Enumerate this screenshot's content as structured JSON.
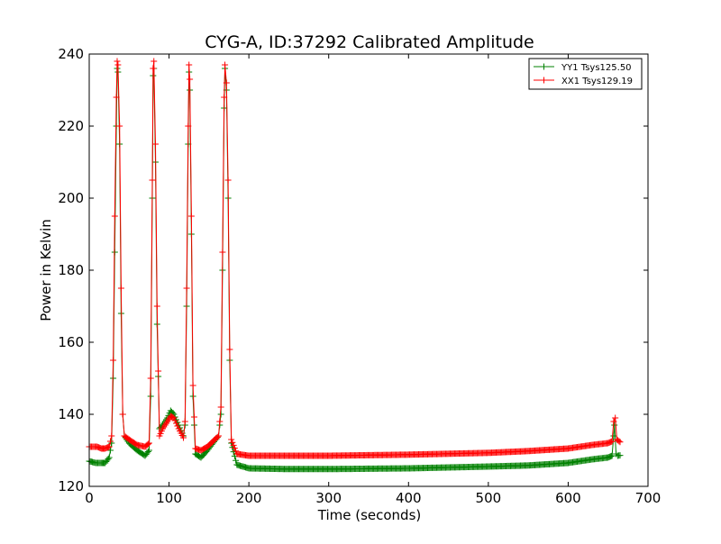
{
  "chart_data": {
    "type": "line",
    "title": "CYG-A, ID:37292 Calibrated Amplitude",
    "xlabel": "Time (seconds)",
    "ylabel": "Power in Kelvin",
    "xlim": [
      0,
      700
    ],
    "ylim": [
      120,
      240
    ],
    "xticks": [
      0,
      100,
      200,
      300,
      400,
      500,
      600,
      700
    ],
    "yticks": [
      120,
      140,
      160,
      180,
      200,
      220,
      240
    ],
    "grid": false,
    "legend_position": "top-right",
    "marker": "plus",
    "series": [
      {
        "name": "YY1 Tsys125.50",
        "color": "#008000",
        "points": [
          [
            0,
            127
          ],
          [
            8,
            126.5
          ],
          [
            15,
            126.5
          ],
          [
            20,
            126.5
          ],
          [
            25,
            128
          ],
          [
            28,
            132
          ],
          [
            30,
            150
          ],
          [
            32,
            185
          ],
          [
            34,
            220
          ],
          [
            35,
            236
          ],
          [
            36,
            235
          ],
          [
            38,
            215
          ],
          [
            40,
            168
          ],
          [
            42,
            140
          ],
          [
            44,
            134
          ],
          [
            50,
            132
          ],
          [
            60,
            130
          ],
          [
            70,
            128.5
          ],
          [
            75,
            130
          ],
          [
            77,
            145
          ],
          [
            79,
            200
          ],
          [
            80,
            234
          ],
          [
            81,
            236
          ],
          [
            83,
            210
          ],
          [
            85,
            165
          ],
          [
            88,
            136
          ],
          [
            92,
            137
          ],
          [
            98,
            139
          ],
          [
            102,
            141
          ],
          [
            106,
            140
          ],
          [
            112,
            137
          ],
          [
            118,
            134
          ],
          [
            120,
            137
          ],
          [
            122,
            170
          ],
          [
            124,
            215
          ],
          [
            125,
            235
          ],
          [
            126,
            230
          ],
          [
            128,
            190
          ],
          [
            130,
            145
          ],
          [
            133,
            129
          ],
          [
            140,
            128
          ],
          [
            148,
            130
          ],
          [
            155,
            132
          ],
          [
            162,
            134
          ],
          [
            165,
            140
          ],
          [
            167,
            180
          ],
          [
            169,
            225
          ],
          [
            170,
            236
          ],
          [
            172,
            230
          ],
          [
            174,
            200
          ],
          [
            176,
            155
          ],
          [
            178,
            132
          ],
          [
            185,
            126
          ],
          [
            200,
            125
          ],
          [
            250,
            124.8
          ],
          [
            300,
            124.8
          ],
          [
            400,
            125
          ],
          [
            500,
            125.5
          ],
          [
            550,
            125.8
          ],
          [
            600,
            126.5
          ],
          [
            630,
            127.5
          ],
          [
            650,
            128
          ],
          [
            655,
            128.5
          ],
          [
            657,
            134
          ],
          [
            658,
            137
          ],
          [
            660,
            129
          ],
          [
            662,
            128.5
          ],
          [
            665,
            128.6
          ]
        ]
      },
      {
        "name": "XX1 Tsys129.19",
        "color": "#ff0000",
        "points": [
          [
            0,
            131
          ],
          [
            10,
            131
          ],
          [
            15,
            130.5
          ],
          [
            20,
            130.5
          ],
          [
            25,
            131
          ],
          [
            28,
            134
          ],
          [
            30,
            155
          ],
          [
            32,
            195
          ],
          [
            34,
            228
          ],
          [
            35,
            238
          ],
          [
            36,
            237
          ],
          [
            38,
            220
          ],
          [
            40,
            175
          ],
          [
            42,
            140
          ],
          [
            44,
            134
          ],
          [
            50,
            133
          ],
          [
            60,
            131.5
          ],
          [
            70,
            131
          ],
          [
            75,
            132
          ],
          [
            77,
            150
          ],
          [
            79,
            205
          ],
          [
            80,
            236
          ],
          [
            81,
            238
          ],
          [
            83,
            215
          ],
          [
            85,
            170
          ],
          [
            88,
            134
          ],
          [
            92,
            136
          ],
          [
            98,
            138
          ],
          [
            102,
            139.5
          ],
          [
            106,
            139
          ],
          [
            112,
            136
          ],
          [
            118,
            133.5
          ],
          [
            120,
            138
          ],
          [
            122,
            175
          ],
          [
            124,
            220
          ],
          [
            125,
            237
          ],
          [
            126,
            233
          ],
          [
            128,
            195
          ],
          [
            130,
            148
          ],
          [
            133,
            130.5
          ],
          [
            140,
            130
          ],
          [
            148,
            131
          ],
          [
            155,
            132.5
          ],
          [
            162,
            134
          ],
          [
            165,
            142
          ],
          [
            167,
            185
          ],
          [
            169,
            228
          ],
          [
            170,
            237
          ],
          [
            172,
            232
          ],
          [
            174,
            205
          ],
          [
            176,
            158
          ],
          [
            178,
            133
          ],
          [
            185,
            129
          ],
          [
            200,
            128.5
          ],
          [
            250,
            128.5
          ],
          [
            300,
            128.5
          ],
          [
            400,
            128.8
          ],
          [
            500,
            129.3
          ],
          [
            550,
            129.8
          ],
          [
            600,
            130.5
          ],
          [
            630,
            131.5
          ],
          [
            650,
            132
          ],
          [
            655,
            132.5
          ],
          [
            657,
            138
          ],
          [
            659,
            139
          ],
          [
            661,
            133
          ],
          [
            665,
            132.3
          ]
        ]
      }
    ]
  }
}
